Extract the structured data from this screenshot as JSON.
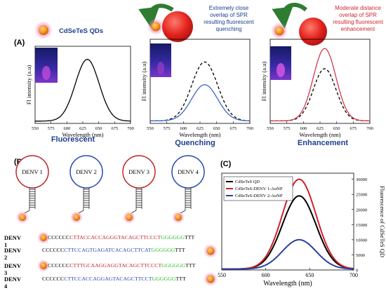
{
  "panel_labels": {
    "a": "(A)",
    "b": "(B)",
    "c": "(C)"
  },
  "panel_a": {
    "qd_label": "CdSeTeS QDs",
    "quench_text": [
      "Extremely close",
      "overlap of SPR",
      "resulting fluorescent",
      "quenching"
    ],
    "enhance_text": [
      "Moderate distance",
      "overlap of SPR",
      "resulting fluorescent",
      "enhancement"
    ],
    "captions": [
      "Fluorescent",
      "Quenching",
      "Enhancement"
    ],
    "colors": {
      "caption": "#1f3e8f",
      "quench_text": "#1f3e8f",
      "enhance_text": "#d0252f",
      "arrow": "#2e7d32",
      "np": "#e3221c",
      "qd": "#f08a1a"
    }
  },
  "panel_b": {
    "probes": [
      "DENV 1",
      "DENV 2",
      "DENV 3",
      "DENV 4"
    ],
    "probe_colors": [
      "#c1272d",
      "#2e49b5",
      "#c1272d",
      "#2e49b5"
    ],
    "sequences": [
      {
        "label": "DENV 1",
        "prefix": "CCCCCC",
        "core": "CTTACCACCAGGGTACAGCTTCCCT",
        "suffix": "GGGGGG",
        "tail": "TTT",
        "core_color": "#c1272d"
      },
      {
        "label": "DENV 2",
        "prefix": "CCCCCC",
        "core": "CTTCCAGTGAGATCACAGCTTCAT",
        "suffix": "GGGGGG",
        "tail": "TTT",
        "core_color": "#2e49b5"
      },
      {
        "label": "DENV 3",
        "prefix": "CCCCCC",
        "core": "CTTTGCAAGGAGGTACAGCTTCCCT",
        "suffix": "GGGGGG",
        "tail": "TTT",
        "core_color": "#c1272d"
      },
      {
        "label": "DENV 4",
        "prefix": "CCCCCC",
        "core": "CTTCCACCAGGAGTACAGCTTCCT",
        "suffix": "GGGGGG",
        "tail": "TTT",
        "core_color": "#2e49b5"
      }
    ],
    "colors": {
      "prefix": "#000000",
      "suffix": "#2bb82b",
      "tail": "#000000"
    }
  },
  "chart_data": [
    {
      "type": "line",
      "title": "",
      "xlabel": "Wavelength (nm)",
      "ylabel": "Fl intensity (a.u)",
      "xlim": [
        550,
        700
      ],
      "xticks": [
        550,
        575,
        600,
        625,
        650,
        675,
        700
      ],
      "caption": "Fluorescent",
      "series": [
        {
          "style": "solid",
          "color": "#000000",
          "peak_x": 632,
          "peak_rel": 0.8,
          "fwhm": 44
        }
      ]
    },
    {
      "type": "line",
      "title": "",
      "xlabel": "Wavelength (nm)",
      "ylabel": "Fl intensity (a.u)",
      "xlim": [
        550,
        700
      ],
      "xticks": [
        550,
        575,
        600,
        625,
        650,
        675,
        700
      ],
      "caption": "Quenching",
      "series": [
        {
          "style": "dashed",
          "color": "#000000",
          "peak_x": 632,
          "peak_rel": 0.7,
          "fwhm": 46
        },
        {
          "style": "solid",
          "color": "#3a66c4",
          "peak_x": 632,
          "peak_rel": 0.43,
          "fwhm": 46
        }
      ]
    },
    {
      "type": "line",
      "title": "",
      "xlabel": "Wavelength (nm)",
      "ylabel": "Fl intensity (a.u)",
      "xlim": [
        550,
        700
      ],
      "xticks": [
        550,
        575,
        600,
        625,
        650,
        675,
        700
      ],
      "caption": "Enhancement",
      "series": [
        {
          "style": "dashed",
          "color": "#000000",
          "peak_x": 632,
          "peak_rel": 0.62,
          "fwhm": 40
        },
        {
          "style": "solid",
          "color": "#cf3a4a",
          "peak_x": 632,
          "peak_rel": 0.86,
          "fwhm": 40
        }
      ]
    },
    {
      "type": "line",
      "title": "",
      "xlabel": "Wavelength (nm)",
      "ylabel": "Fluorescence of CdSeTeS QD",
      "xlim": [
        550,
        700
      ],
      "ylim": [
        0,
        32000
      ],
      "xticks": [
        550,
        600,
        650,
        700
      ],
      "yticks": [
        0,
        5000,
        10000,
        15000,
        20000,
        25000,
        30000
      ],
      "legend": "top-left",
      "series": [
        {
          "name": "CdSeTeS QD",
          "color": "#000000",
          "peak_x": 638,
          "peak_y": 24500,
          "fwhm": 45
        },
        {
          "name": "CdSeTeS-DENV 1-AuNP",
          "color": "#d0212a",
          "peak_x": 638,
          "peak_y": 30000,
          "fwhm": 45
        },
        {
          "name": "CdSeTeS-DENV 2-AuNP",
          "color": "#2c3f9e",
          "peak_x": 638,
          "peak_y": 10000,
          "fwhm": 45
        }
      ]
    }
  ]
}
